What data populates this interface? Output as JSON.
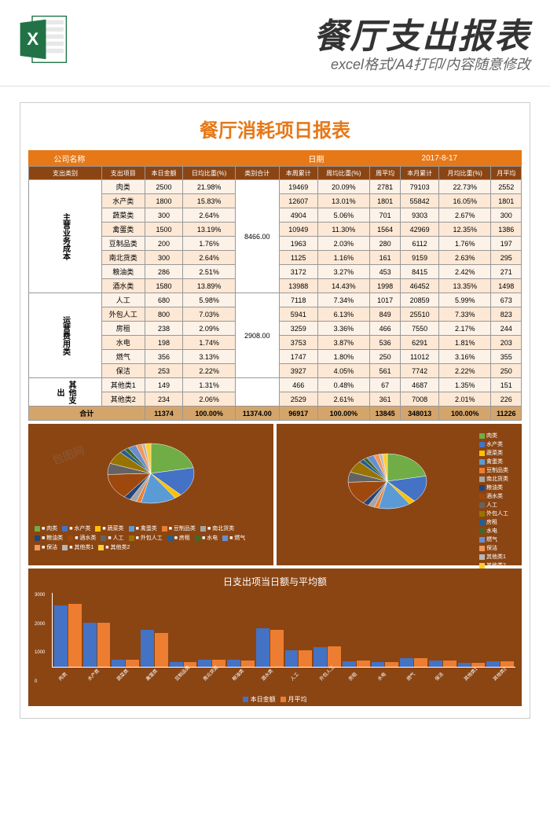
{
  "header": {
    "title": "餐厅支出报表",
    "subtitle": "excel格式/A4打印/内容随意修改"
  },
  "report": {
    "title": "餐厅消耗项日报表",
    "company_label": "公司名称",
    "date_label": "日期",
    "date_value": "2017-8-17"
  },
  "columns": [
    "支出类别",
    "支出项目",
    "本日金额",
    "日均比重(%)",
    "类别合计",
    "本周累计",
    "周均比重(%)",
    "周平均",
    "本月累计",
    "月均比重(%)",
    "月平均"
  ],
  "categories": [
    {
      "name": "主营业务成本",
      "subtotal": "8466.00",
      "rows": [
        {
          "c": [
            "肉类",
            "2500",
            "21.98%",
            "",
            "19469",
            "20.09%",
            "2781",
            "79103",
            "22.73%",
            "2552"
          ]
        },
        {
          "c": [
            "水产类",
            "1800",
            "15.83%",
            "",
            "12607",
            "13.01%",
            "1801",
            "55842",
            "16.05%",
            "1801"
          ]
        },
        {
          "c": [
            "蔬菜类",
            "300",
            "2.64%",
            "",
            "4904",
            "5.06%",
            "701",
            "9303",
            "2.67%",
            "300"
          ]
        },
        {
          "c": [
            "禽蛋类",
            "1500",
            "13.19%",
            "",
            "10949",
            "11.30%",
            "1564",
            "42969",
            "12.35%",
            "1386"
          ]
        },
        {
          "c": [
            "豆制品类",
            "200",
            "1.76%",
            "",
            "1963",
            "2.03%",
            "280",
            "6112",
            "1.76%",
            "197"
          ]
        },
        {
          "c": [
            "南北货类",
            "300",
            "2.64%",
            "",
            "1125",
            "1.16%",
            "161",
            "9159",
            "2.63%",
            "295"
          ]
        },
        {
          "c": [
            "粮油类",
            "286",
            "2.51%",
            "",
            "3172",
            "3.27%",
            "453",
            "8415",
            "2.42%",
            "271"
          ]
        },
        {
          "c": [
            "酒水类",
            "1580",
            "13.89%",
            "",
            "13988",
            "14.43%",
            "1998",
            "46452",
            "13.35%",
            "1498"
          ]
        }
      ]
    },
    {
      "name": "运营费用类",
      "subtotal": "2908.00",
      "rows": [
        {
          "c": [
            "人工",
            "680",
            "5.98%",
            "",
            "7118",
            "7.34%",
            "1017",
            "20859",
            "5.99%",
            "673"
          ]
        },
        {
          "c": [
            "外包人工",
            "800",
            "7.03%",
            "",
            "5941",
            "6.13%",
            "849",
            "25510",
            "7.33%",
            "823"
          ]
        },
        {
          "c": [
            "房租",
            "238",
            "2.09%",
            "",
            "3259",
            "3.36%",
            "466",
            "7550",
            "2.17%",
            "244"
          ]
        },
        {
          "c": [
            "水电",
            "198",
            "1.74%",
            "",
            "3753",
            "3.87%",
            "536",
            "6291",
            "1.81%",
            "203"
          ]
        },
        {
          "c": [
            "燃气",
            "356",
            "3.13%",
            "",
            "1747",
            "1.80%",
            "250",
            "11012",
            "3.16%",
            "355"
          ]
        },
        {
          "c": [
            "保洁",
            "253",
            "2.22%",
            "",
            "3927",
            "4.05%",
            "561",
            "7742",
            "2.22%",
            "250"
          ]
        }
      ]
    },
    {
      "name": "其他支出",
      "subtotal": "",
      "rows": [
        {
          "c": [
            "其他类1",
            "149",
            "1.31%",
            "",
            "466",
            "0.48%",
            "67",
            "4687",
            "1.35%",
            "151"
          ]
        },
        {
          "c": [
            "其他类2",
            "234",
            "2.06%",
            "",
            "2529",
            "2.61%",
            "361",
            "7008",
            "2.01%",
            "226"
          ]
        }
      ]
    }
  ],
  "total": {
    "label": "合计",
    "c": [
      "11374",
      "100.00%",
      "11374.00",
      "96917",
      "100.00%",
      "13845",
      "348013",
      "100.00%",
      "11226"
    ]
  },
  "pie_colors": [
    "#70ad47",
    "#4472c4",
    "#ffc000",
    "#5b9bd5",
    "#ed7d31",
    "#a5a5a5",
    "#264478",
    "#9e480e",
    "#636363",
    "#997300",
    "#255e91",
    "#43682b",
    "#698ed0",
    "#f1975a",
    "#b7b7b7",
    "#ffcd33"
  ],
  "items": [
    "肉类",
    "水产类",
    "蔬菜类",
    "禽蛋类",
    "豆制品类",
    "南北货类",
    "粮油类",
    "酒水类",
    "人工",
    "外包人工",
    "房租",
    "水电",
    "燃气",
    "保洁",
    "其他类1",
    "其他类2"
  ],
  "pie1_values": [
    2500,
    1800,
    300,
    1500,
    200,
    300,
    286,
    1580,
    680,
    800,
    238,
    198,
    356,
    253,
    149,
    234
  ],
  "bar_chart": {
    "title": "日支出项当日额与平均额",
    "y_ticks": [
      "3000",
      "2000",
      "1000",
      "0"
    ],
    "series": [
      "本日金额",
      "月平均"
    ],
    "today": [
      2500,
      1800,
      300,
      1500,
      200,
      300,
      286,
      1580,
      680,
      800,
      238,
      198,
      356,
      253,
      149,
      234
    ],
    "avg": [
      2552,
      1801,
      300,
      1386,
      197,
      295,
      271,
      1498,
      673,
      823,
      244,
      203,
      355,
      250,
      151,
      226
    ],
    "max": 3000
  }
}
